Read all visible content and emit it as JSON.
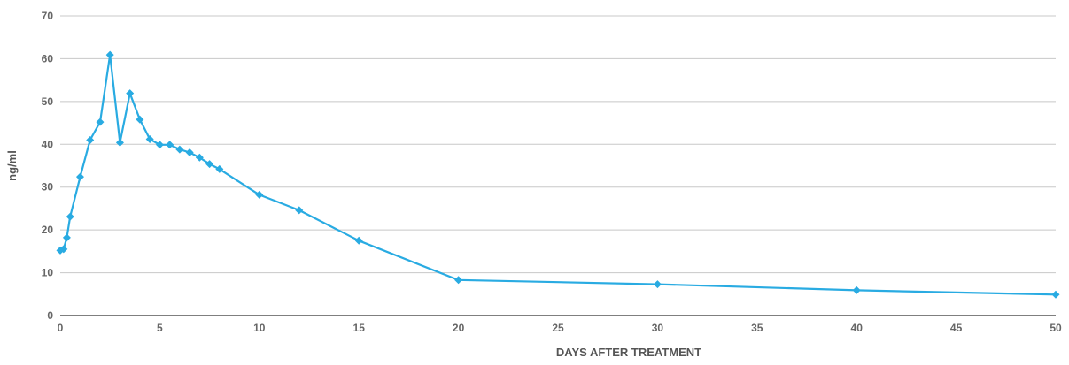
{
  "chart_data": {
    "type": "line",
    "title": "",
    "xlabel": "DAYS AFTER TREATMENT",
    "ylabel": "ng/ml",
    "xlim": [
      0,
      50
    ],
    "ylim": [
      0,
      70
    ],
    "x_ticks": [
      "0",
      "5",
      "10",
      "15",
      "20",
      "25",
      "30",
      "35",
      "40",
      "45",
      "50"
    ],
    "x_tick_values": [
      0,
      5,
      10,
      15,
      20,
      25,
      30,
      35,
      40,
      45,
      50
    ],
    "y_ticks": [
      "0",
      "10",
      "20",
      "30",
      "40",
      "50",
      "60",
      "70"
    ],
    "y_tick_values": [
      0,
      10,
      20,
      30,
      40,
      50,
      60,
      70
    ],
    "grid": "horizontal",
    "line_color": "#29abe2",
    "series": [
      {
        "x": [
          0,
          0.17,
          0.33,
          0.5,
          1,
          1.5,
          2,
          2.5,
          3,
          3.5,
          4,
          4.5,
          5,
          5.5,
          6,
          6.5,
          7,
          7.5,
          8,
          10,
          12,
          15,
          20,
          30,
          40,
          50
        ],
        "values": [
          15.2,
          15.5,
          18.2,
          23.1,
          32.4,
          41.0,
          45.2,
          60.9,
          40.4,
          51.9,
          45.8,
          41.2,
          39.9,
          39.9,
          38.8,
          38.1,
          36.9,
          35.4,
          34.2,
          28.2,
          24.6,
          17.5,
          8.3,
          7.3,
          5.9,
          4.9
        ]
      }
    ]
  }
}
